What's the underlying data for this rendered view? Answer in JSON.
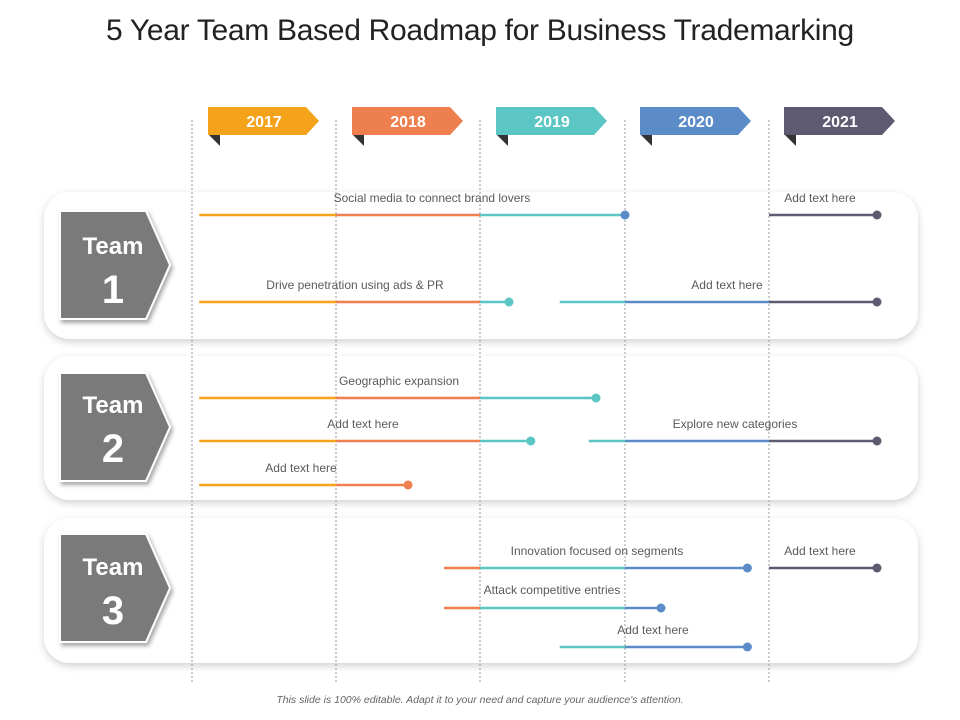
{
  "title": "5 Year Team Based Roadmap for Business Trademarking",
  "footer": "This slide is 100% editable. Adapt it to your need and capture your audience's attention.",
  "colors": {
    "y2017": "#F5A31A",
    "y2018": "#EE7F4E",
    "y2019": "#5CC6C4",
    "y2020": "#5B8CC8",
    "y2021": "#5E5A72",
    "team_box": "#7A7A7A"
  },
  "years": [
    {
      "label": "2017",
      "color": "#F5A31A"
    },
    {
      "label": "2018",
      "color": "#EE7F4E"
    },
    {
      "label": "2019",
      "color": "#5CC6C4"
    },
    {
      "label": "2020",
      "color": "#5B8CC8"
    },
    {
      "label": "2021",
      "color": "#5E5A72"
    }
  ],
  "teams": [
    {
      "word": "Team",
      "number": "1",
      "tasks": [
        {
          "label": "Social media to connect brand lovers",
          "start": 2017.05,
          "end": 2020.0
        },
        {
          "label": "Add text here",
          "start": 2021.0,
          "end": 2021.75
        },
        {
          "label": "Drive penetration using ads & PR",
          "start": 2017.05,
          "end": 2019.2
        },
        {
          "label": "Add text here",
          "start": 2019.55,
          "end": 2021.75
        }
      ]
    },
    {
      "word": "Team",
      "number": "2",
      "tasks": [
        {
          "label": "Geographic expansion",
          "start": 2017.05,
          "end": 2019.8
        },
        {
          "label": "Add text here",
          "start": 2017.05,
          "end": 2019.35
        },
        {
          "label": "Explore new categories",
          "start": 2019.75,
          "end": 2021.75
        },
        {
          "label": "Add text here",
          "start": 2017.05,
          "end": 2018.5
        }
      ]
    },
    {
      "word": "Team",
      "number": "3",
      "tasks": [
        {
          "label": "Innovation focused on segments",
          "start": 2018.75,
          "end": 2020.85
        },
        {
          "label": "Add text here",
          "start": 2021.0,
          "end": 2021.75
        },
        {
          "label": "Attack competitive entries",
          "start": 2018.75,
          "end": 2020.25
        },
        {
          "label": "Add text here",
          "start": 2019.55,
          "end": 2020.85
        }
      ]
    }
  ]
}
